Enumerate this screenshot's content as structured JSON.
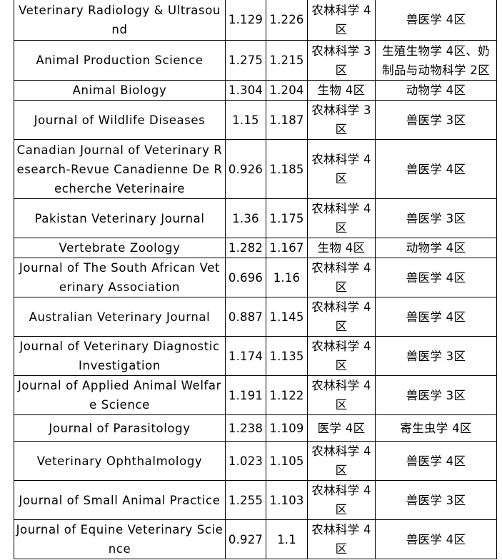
{
  "rows": [
    {
      "journal": "Veterinary Radiology & Ultrasound",
      "v1": "1.129",
      "v2": "1.226",
      "cas": "农林科学 4区",
      "sub": "兽医学 4区"
    },
    {
      "journal": "Animal Production Science",
      "v1": "1.275",
      "v2": "1.215",
      "cas": "农林科学 3区",
      "sub": "生殖生物学 4区、奶制品与动物科学 2区"
    },
    {
      "journal": "Animal Biology",
      "v1": "1.304",
      "v2": "1.204",
      "cas": "生物 4区",
      "sub": "动物学 4区"
    },
    {
      "journal": "Journal of Wildlife Diseases",
      "v1": "1.15",
      "v2": "1.187",
      "cas": "农林科学 3区",
      "sub": "兽医学 3区"
    },
    {
      "journal": "Canadian Journal of Veterinary Research-Revue Canadienne De Recherche Veterinaire",
      "v1": "0.926",
      "v2": "1.185",
      "cas": "农林科学 4区",
      "sub": "兽医学 4区"
    },
    {
      "journal": "Pakistan Veterinary Journal",
      "v1": "1.36",
      "v2": "1.175",
      "cas": "农林科学 4区",
      "sub": "兽医学 3区"
    },
    {
      "journal": "Vertebrate Zoology",
      "v1": "1.282",
      "v2": "1.167",
      "cas": "生物 4区",
      "sub": "动物学 4区"
    },
    {
      "journal": "Journal of The South African Veterinary Association",
      "v1": "0.696",
      "v2": "1.16",
      "cas": "农林科学 4区",
      "sub": "兽医学 4区"
    },
    {
      "journal": "Australian Veterinary Journal",
      "v1": "0.887",
      "v2": "1.145",
      "cas": "农林科学 4区",
      "sub": "兽医学 4区"
    },
    {
      "journal": "Journal of Veterinary Diagnostic Investigation",
      "v1": "1.174",
      "v2": "1.135",
      "cas": "农林科学 4区",
      "sub": "兽医学 3区"
    },
    {
      "journal": "Journal of Applied Animal Welfare Science",
      "v1": "1.191",
      "v2": "1.122",
      "cas": "农林科学 4区",
      "sub": "兽医学 3区"
    },
    {
      "journal": "Journal of Parasitology",
      "v1": "1.238",
      "v2": "1.109",
      "cas": "医学 4区",
      "sub": "寄生虫学 4区"
    },
    {
      "journal": "Veterinary Ophthalmology",
      "v1": "1.023",
      "v2": "1.105",
      "cas": "农林科学 4区",
      "sub": "兽医学 4区"
    },
    {
      "journal": "Journal of Small Animal Practice",
      "v1": "1.255",
      "v2": "1.103",
      "cas": "农林科学 4区",
      "sub": "兽医学 3区"
    },
    {
      "journal": "Journal of Equine Veterinary Science",
      "v1": "0.927",
      "v2": "1.1",
      "cas": "农林科学 4区",
      "sub": "兽医学 4区"
    }
  ]
}
